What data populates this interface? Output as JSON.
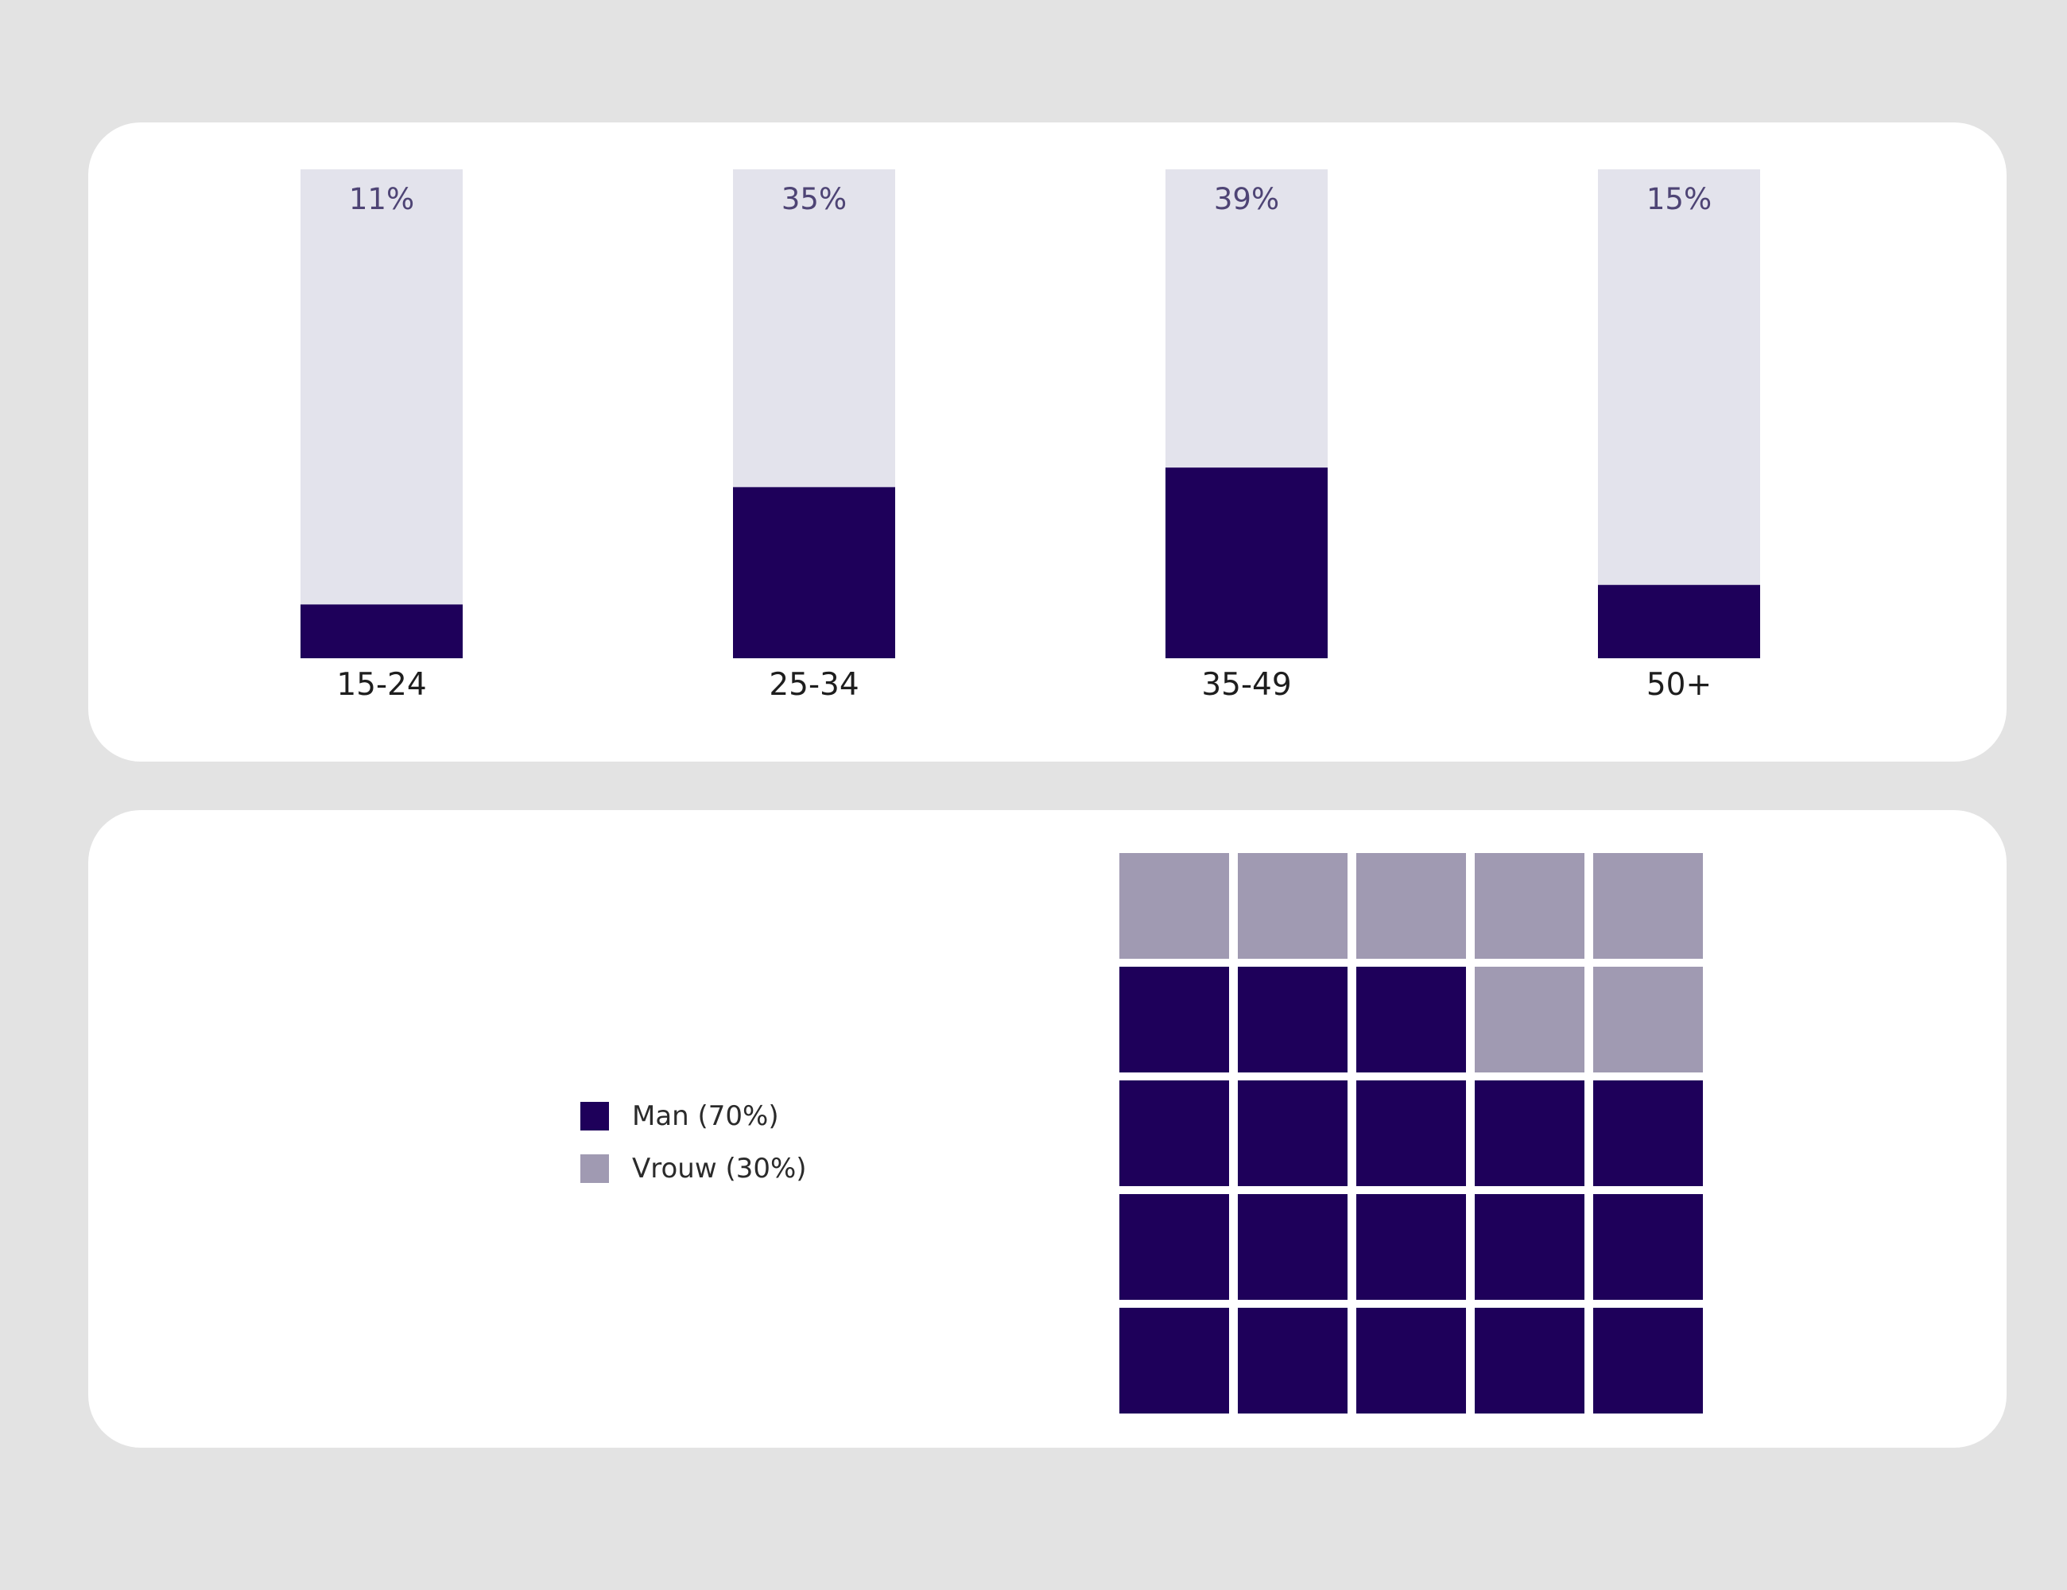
{
  "colors": {
    "background": "#e3e3e3",
    "card": "#ffffff",
    "primary": "#1e005a",
    "secondary": "#a09ab2",
    "track": "#e3e3ec",
    "value_text": "#4e4475",
    "axis_text": "#1e1e1e"
  },
  "chart_data": [
    {
      "type": "bar",
      "categories": [
        "15-24",
        "25-34",
        "35-49",
        "50+"
      ],
      "values": [
        11,
        35,
        39,
        15
      ],
      "value_labels": [
        "11%",
        "35%",
        "39%",
        "15%"
      ],
      "ylim": [
        0,
        100
      ],
      "unit": "%",
      "title": "",
      "xlabel": "",
      "ylabel": "",
      "grid": false
    },
    {
      "type": "waffle",
      "grid_size": [
        5,
        5
      ],
      "fill_order": "bottom-up",
      "series": [
        {
          "name": "Man (70%)",
          "value": 70,
          "color": "#1e005a"
        },
        {
          "name": "Vrouw (30%)",
          "value": 30,
          "color": "#a09ab2"
        }
      ],
      "legend_position": "left"
    }
  ],
  "legend": {
    "items": [
      {
        "label": "Man (70%)",
        "color": "#1e005a"
      },
      {
        "label": "Vrouw (30%)",
        "color": "#a09ab2"
      }
    ]
  }
}
